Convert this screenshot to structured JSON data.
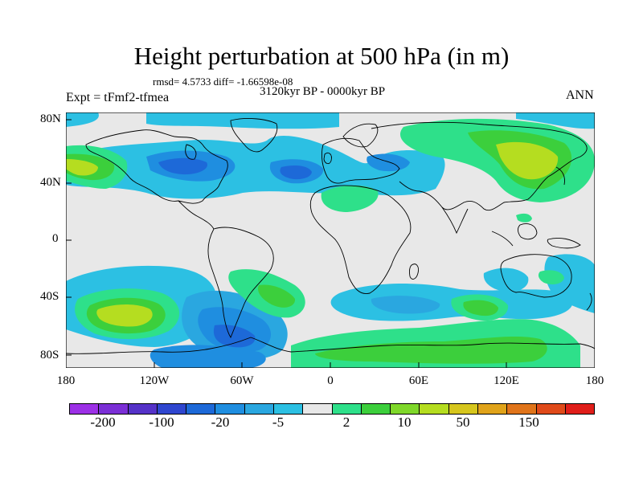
{
  "title": "Height perturbation at 500 hPa (in m)",
  "stats": "rmsd= 4.5733 diff= -1.66598e-08",
  "experiment": "Expt = tFmf2-tfmea",
  "period": "3120kyr BP - 0000kyr BP",
  "season": "ANN",
  "map": {
    "lat_ticks": [
      "80N",
      "40N",
      "0",
      "40S",
      "80S"
    ],
    "lon_ticks": [
      "180",
      "120W",
      "60W",
      "0",
      "60E",
      "120E",
      "180"
    ],
    "background_color": "#e8e8e8"
  },
  "colorbar": {
    "colors": [
      "#9c30e6",
      "#7b2fd6",
      "#5532c8",
      "#2f46cf",
      "#1d69d8",
      "#1f8ee0",
      "#2aa7e0",
      "#2cc0e3",
      "#e8e8e8",
      "#2ee08a",
      "#3ccf3c",
      "#7fd82a",
      "#b5dd20",
      "#d6c61d",
      "#e0a31a",
      "#e0741a",
      "#e04a1a",
      "#e01e1a"
    ],
    "labels": [
      "-200",
      "-100",
      "-20",
      "-5",
      "2",
      "10",
      "50",
      "150"
    ]
  }
}
